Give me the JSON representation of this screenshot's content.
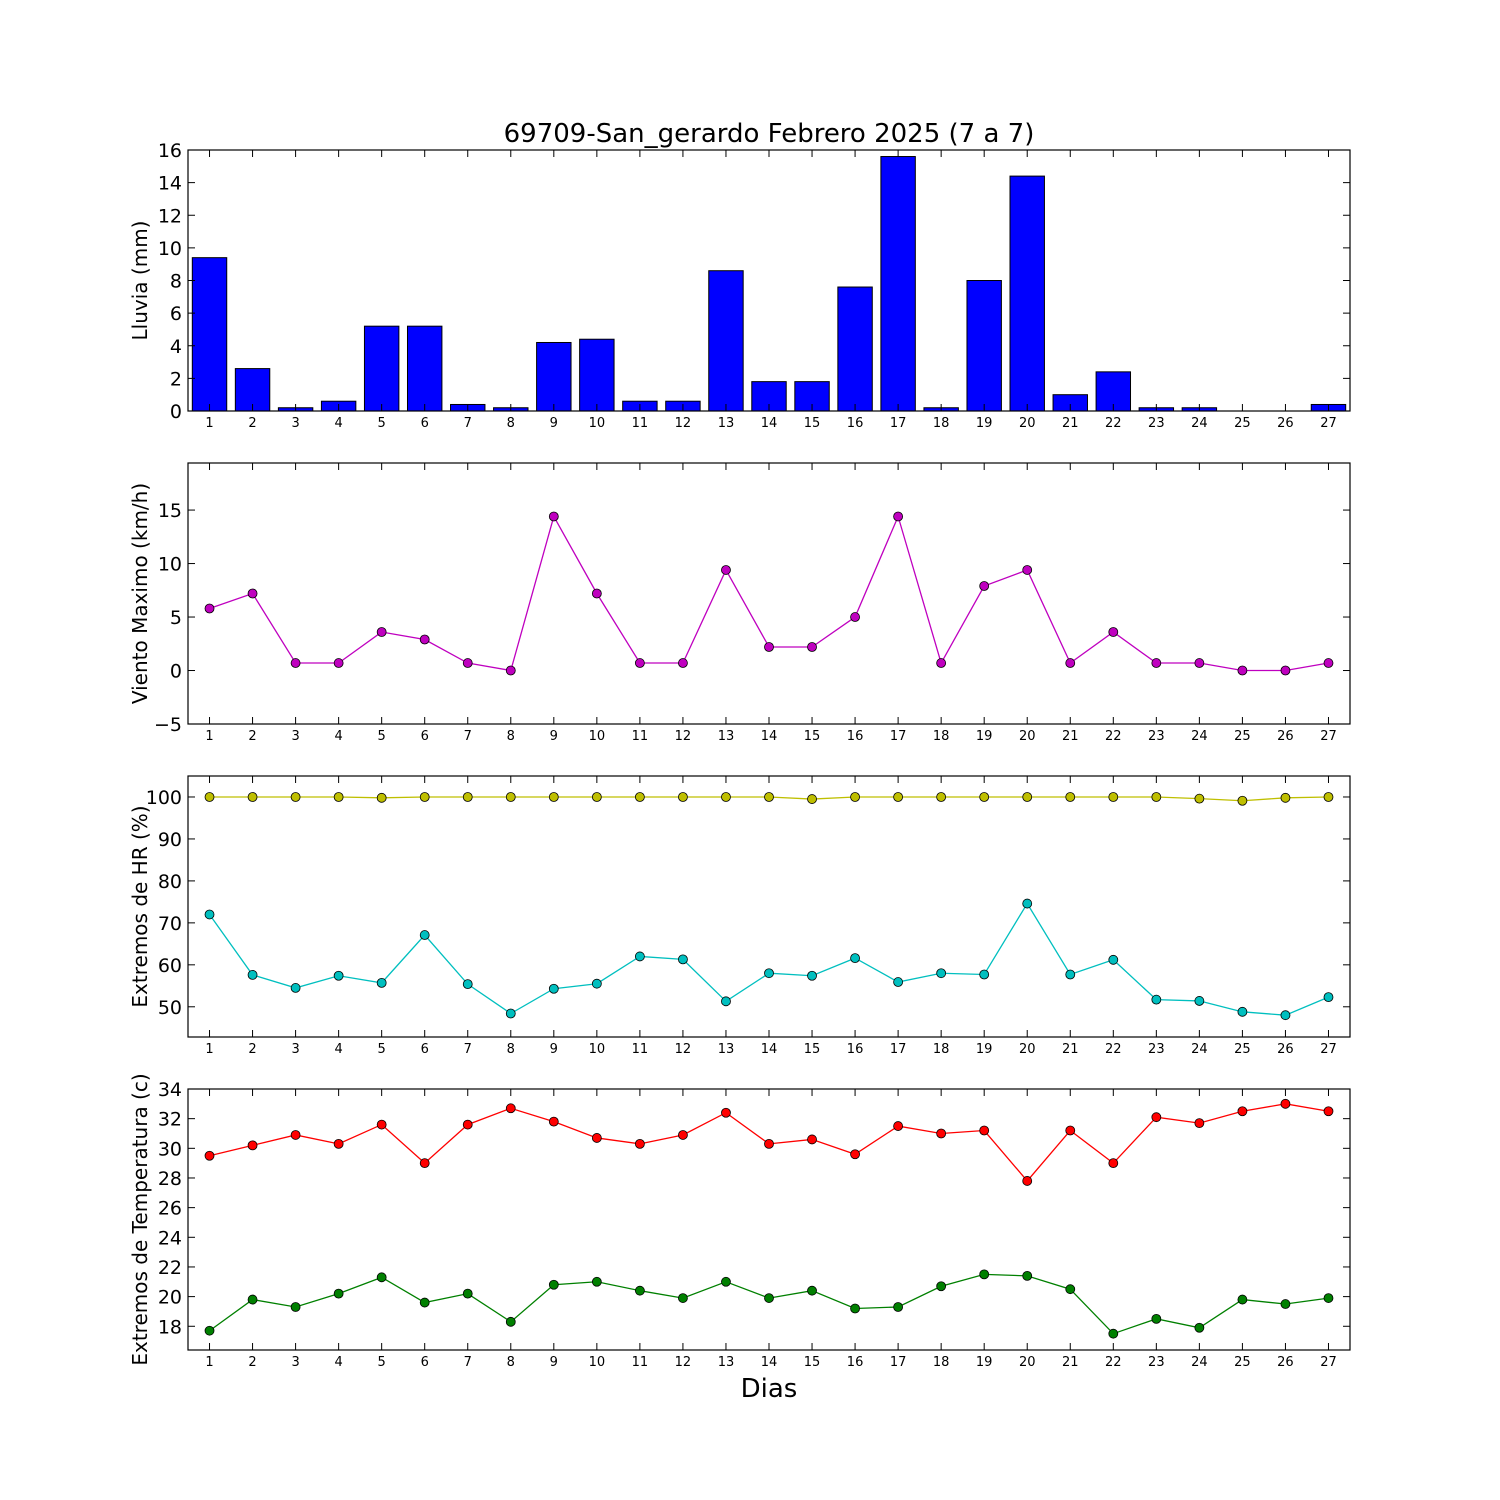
{
  "title": "69709-San_gerardo Febrero 2025  (7 a 7)",
  "chart_data": [
    {
      "type": "bar",
      "title": "69709-San_gerardo Febrero 2025  (7 a 7)",
      "xlabel": "",
      "ylabel": "Lluvia (mm)",
      "categories": [
        "1",
        "2",
        "3",
        "4",
        "5",
        "6",
        "7",
        "8",
        "9",
        "10",
        "11",
        "12",
        "13",
        "14",
        "15",
        "16",
        "17",
        "18",
        "19",
        "20",
        "21",
        "22",
        "23",
        "24",
        "25",
        "26",
        "27"
      ],
      "ylim": [
        0,
        16
      ],
      "yticks": [
        0,
        2,
        4,
        6,
        8,
        10,
        12,
        14,
        16
      ],
      "grid": false,
      "series": [
        {
          "color": "#0000ff",
          "values": [
            9.4,
            2.6,
            0.2,
            0.6,
            5.2,
            5.2,
            0.4,
            0.2,
            4.2,
            4.4,
            0.6,
            0.6,
            8.6,
            1.8,
            1.8,
            7.6,
            15.6,
            0.2,
            8.0,
            14.4,
            1.0,
            2.4,
            0.2,
            0.2,
            0.0,
            0.0,
            0.4
          ]
        }
      ]
    },
    {
      "type": "line",
      "xlabel": "",
      "ylabel": "Viento Maximo (km/h)",
      "categories": [
        "1",
        "2",
        "3",
        "4",
        "5",
        "6",
        "7",
        "8",
        "9",
        "10",
        "11",
        "12",
        "13",
        "14",
        "15",
        "16",
        "17",
        "18",
        "19",
        "20",
        "21",
        "22",
        "23",
        "24",
        "25",
        "26",
        "27"
      ],
      "ylim": [
        -5,
        19.4
      ],
      "yticks": [
        -5,
        0,
        5,
        10,
        15
      ],
      "ytick_labels": [
        "−5",
        "0",
        "5",
        "10",
        "15"
      ],
      "grid": false,
      "series": [
        {
          "color": "#bf00bf",
          "values": [
            5.8,
            7.2,
            0.7,
            0.7,
            3.6,
            2.9,
            0.7,
            0.0,
            14.4,
            7.2,
            0.7,
            0.7,
            9.4,
            2.2,
            2.2,
            5.0,
            14.4,
            0.7,
            7.9,
            9.4,
            0.7,
            3.6,
            0.7,
            0.7,
            0.0,
            0.0,
            0.7
          ]
        }
      ]
    },
    {
      "type": "line",
      "xlabel": "",
      "ylabel": "Extremos de HR (%)",
      "categories": [
        "1",
        "2",
        "3",
        "4",
        "5",
        "6",
        "7",
        "8",
        "9",
        "10",
        "11",
        "12",
        "13",
        "14",
        "15",
        "16",
        "17",
        "18",
        "19",
        "20",
        "21",
        "22",
        "23",
        "24",
        "25",
        "26",
        "27"
      ],
      "ylim": [
        42.8,
        105
      ],
      "yticks": [
        50,
        60,
        70,
        80,
        90,
        100
      ],
      "grid": false,
      "series": [
        {
          "color": "#bfbf00",
          "values": [
            100,
            100,
            100,
            100,
            99.8,
            100,
            100,
            100,
            100,
            100,
            100,
            100,
            100,
            100,
            99.5,
            100,
            100,
            100,
            100,
            100,
            100,
            100,
            100,
            99.6,
            99.1,
            99.8,
            100
          ]
        },
        {
          "color": "#00bfbf",
          "values": [
            72.0,
            57.6,
            54.5,
            57.4,
            55.7,
            67.1,
            55.4,
            48.4,
            54.3,
            55.5,
            62.0,
            61.3,
            51.3,
            58.0,
            57.4,
            61.6,
            55.9,
            58.0,
            57.7,
            74.6,
            57.7,
            61.2,
            51.7,
            51.4,
            48.8,
            48.0,
            52.3
          ]
        }
      ]
    },
    {
      "type": "line",
      "xlabel": "Dias",
      "ylabel": "Extremos de Temperatura (c)",
      "categories": [
        "1",
        "2",
        "3",
        "4",
        "5",
        "6",
        "7",
        "8",
        "9",
        "10",
        "11",
        "12",
        "13",
        "14",
        "15",
        "16",
        "17",
        "18",
        "19",
        "20",
        "21",
        "22",
        "23",
        "24",
        "25",
        "26",
        "27"
      ],
      "ylim": [
        16.4,
        34
      ],
      "yticks": [
        18,
        20,
        22,
        24,
        26,
        28,
        30,
        32,
        34
      ],
      "grid": false,
      "series": [
        {
          "color": "#ff0000",
          "values": [
            29.5,
            30.2,
            30.9,
            30.3,
            31.6,
            29.0,
            31.6,
            32.7,
            31.8,
            30.7,
            30.3,
            30.9,
            32.4,
            30.3,
            30.6,
            29.6,
            31.5,
            31.0,
            31.2,
            27.8,
            31.2,
            29.0,
            32.1,
            31.7,
            32.5,
            33.0,
            32.5
          ]
        },
        {
          "color": "#008000",
          "values": [
            17.7,
            19.8,
            19.3,
            20.2,
            21.3,
            19.6,
            20.2,
            18.3,
            20.8,
            21.0,
            20.4,
            19.9,
            21.0,
            19.9,
            20.4,
            19.2,
            19.3,
            20.7,
            21.5,
            21.4,
            20.5,
            17.5,
            18.5,
            17.9,
            19.8,
            19.5,
            19.9
          ]
        }
      ]
    }
  ]
}
